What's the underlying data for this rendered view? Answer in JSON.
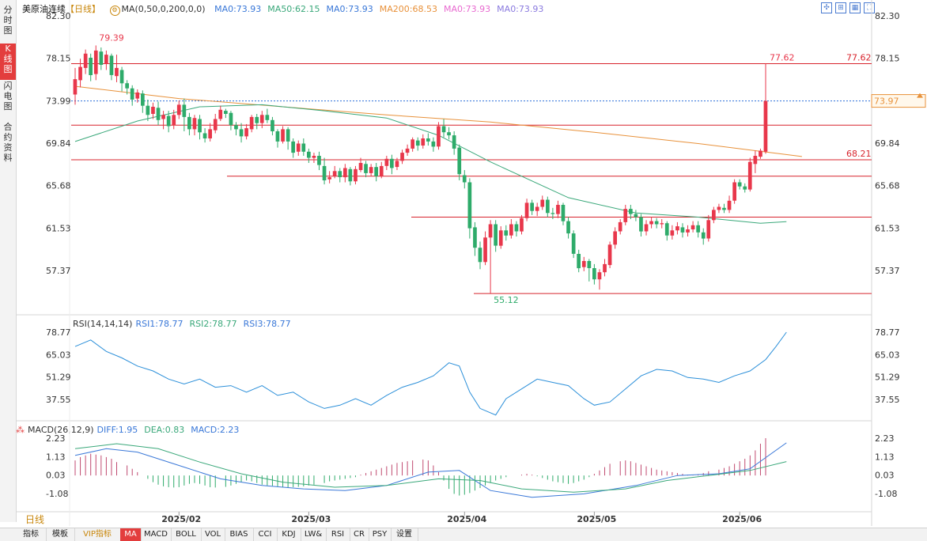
{
  "sidebar": {
    "tabs": [
      {
        "label": "分时图",
        "active": false
      },
      {
        "label": "K线图",
        "active": true
      },
      {
        "label": "闪电图",
        "active": false
      },
      {
        "label": "合约资料",
        "active": false
      }
    ]
  },
  "header": {
    "instrument": "美原油连续",
    "period": "【日线】",
    "ma_params": "MA(0,50,0,200,0,0)",
    "ma_values": [
      {
        "label": "MA0:73.93",
        "color": "#3a78d8"
      },
      {
        "label": "MA50:62.15",
        "color": "#3aa87a"
      },
      {
        "label": "MA0:73.93",
        "color": "#3a78d8"
      },
      {
        "label": "MA200:68.53",
        "color": "#e8913a"
      },
      {
        "label": "MA0:73.93",
        "color": "#e86ad0"
      },
      {
        "label": "MA0:73.93",
        "color": "#8a7adf"
      }
    ]
  },
  "rsi_header": {
    "params": "RSI(14,14,14)",
    "values": [
      {
        "label": "RSI1:78.77",
        "color": "#3a78d8"
      },
      {
        "label": "RSI2:78.77",
        "color": "#3aa87a"
      },
      {
        "label": "RSI3:78.77",
        "color": "#3a78d8"
      }
    ]
  },
  "macd_header": {
    "params": "MACD(26,12,9)",
    "values": [
      {
        "label": "DIFF:1.95",
        "color": "#3a78d8"
      },
      {
        "label": "DEA:0.83",
        "color": "#3aa87a"
      },
      {
        "label": "MACD:2.23",
        "color": "#3a78d8"
      }
    ]
  },
  "price_axis": {
    "ticks": [
      "82.30",
      "78.15",
      "73.99",
      "69.84",
      "65.68",
      "61.53",
      "57.37"
    ],
    "current": "73.97"
  },
  "rsi_axis": {
    "ticks": [
      "78.77",
      "65.03",
      "51.29",
      "37.55"
    ]
  },
  "macd_axis": {
    "ticks": [
      "2.23",
      "1.13",
      "0.03",
      "-1.08"
    ]
  },
  "date_labels": [
    "2025/02",
    "2025/03",
    "2025/04",
    "2025/05",
    "2025/06"
  ],
  "annotations": {
    "high": "79.39",
    "low": "55.12",
    "last_high": "77.62",
    "line_right": "77.62",
    "level": "68.21"
  },
  "bottom_tabs": [
    "指标",
    "模板",
    "VIP指标",
    "MA",
    "MACD",
    "BOLL",
    "VOL",
    "BIAS",
    "CCI",
    "KDJ",
    "LW&",
    "RSI",
    "CR",
    "PSY",
    "设置"
  ],
  "period_button": "日线",
  "colors": {
    "up": "#e8374b",
    "down": "#2eab6a",
    "ma50": "#3aa87a",
    "ma200": "#e8913a",
    "rsi": "#2b8fd9",
    "hline": "#d8242d",
    "dashed": "#2b6fd9"
  },
  "chart_data": {
    "type": "candlestick",
    "title": "美原油连续",
    "ylim": [
      53.5,
      82.3
    ],
    "candles": [
      [
        74.6,
        76.1,
        73.6,
        77.2
      ],
      [
        76.0,
        77.3,
        75.3,
        78.1
      ],
      [
        77.2,
        78.6,
        76.6,
        79.0
      ],
      [
        78.2,
        76.5,
        75.9,
        78.6
      ],
      [
        76.6,
        78.9,
        76.0,
        79.4
      ],
      [
        78.8,
        77.5,
        77.0,
        79.2
      ],
      [
        77.6,
        78.5,
        77.0,
        78.9
      ],
      [
        78.4,
        76.5,
        76.0,
        78.6
      ],
      [
        76.4,
        77.2,
        75.8,
        78.5
      ],
      [
        77.0,
        75.7,
        74.9,
        77.3
      ],
      [
        75.7,
        75.2,
        74.6,
        76.0
      ],
      [
        75.2,
        74.1,
        73.5,
        75.5
      ],
      [
        74.2,
        74.8,
        73.8,
        75.1
      ],
      [
        74.7,
        73.5,
        72.8,
        75.0
      ],
      [
        73.5,
        72.6,
        72.0,
        74.1
      ],
      [
        72.7,
        73.4,
        72.2,
        73.8
      ],
      [
        73.3,
        72.1,
        71.6,
        73.9
      ],
      [
        72.2,
        72.6,
        71.2,
        73.0
      ],
      [
        72.5,
        71.5,
        70.9,
        73.0
      ],
      [
        71.6,
        72.6,
        71.2,
        73.1
      ],
      [
        72.6,
        73.6,
        72.2,
        74.0
      ],
      [
        73.6,
        72.4,
        71.0,
        74.2
      ],
      [
        72.4,
        71.2,
        70.6,
        72.8
      ],
      [
        71.2,
        72.3,
        70.6,
        72.6
      ],
      [
        72.2,
        70.9,
        70.2,
        72.6
      ],
      [
        70.8,
        70.3,
        69.9,
        71.3
      ],
      [
        70.3,
        71.2,
        70.0,
        71.8
      ],
      [
        71.1,
        72.2,
        70.8,
        72.7
      ],
      [
        72.2,
        73.1,
        72.0,
        73.5
      ],
      [
        73.0,
        72.7,
        72.3,
        73.2
      ],
      [
        72.8,
        71.6,
        71.1,
        73.0
      ],
      [
        71.6,
        71.2,
        70.6,
        71.9
      ],
      [
        71.2,
        70.5,
        69.9,
        71.8
      ],
      [
        70.5,
        71.3,
        70.2,
        71.7
      ],
      [
        71.2,
        72.4,
        70.9,
        72.6
      ],
      [
        72.4,
        71.8,
        71.2,
        72.7
      ],
      [
        71.8,
        72.6,
        71.3,
        73.0
      ],
      [
        72.6,
        72.1,
        71.8,
        73.2
      ],
      [
        72.1,
        71.0,
        70.6,
        72.4
      ],
      [
        71.0,
        70.0,
        69.4,
        71.2
      ],
      [
        70.0,
        71.2,
        69.8,
        71.5
      ],
      [
        71.2,
        70.0,
        69.2,
        71.4
      ],
      [
        70.0,
        68.9,
        68.4,
        70.3
      ],
      [
        69.0,
        69.8,
        68.6,
        70.1
      ],
      [
        69.8,
        69.0,
        68.6,
        70.3
      ],
      [
        69.0,
        68.4,
        67.9,
        69.3
      ],
      [
        68.4,
        68.6,
        67.9,
        68.9
      ],
      [
        68.6,
        67.7,
        67.2,
        69.0
      ],
      [
        67.6,
        66.2,
        65.8,
        68.4
      ],
      [
        66.3,
        66.5,
        65.9,
        67.1
      ],
      [
        66.6,
        67.1,
        66.4,
        67.6
      ],
      [
        67.1,
        66.5,
        66.0,
        67.4
      ],
      [
        66.5,
        67.4,
        66.0,
        67.8
      ],
      [
        67.3,
        66.1,
        65.7,
        67.5
      ],
      [
        66.1,
        67.3,
        65.8,
        67.6
      ],
      [
        67.2,
        67.9,
        67.0,
        68.4
      ],
      [
        67.8,
        66.9,
        66.5,
        68.1
      ],
      [
        66.9,
        67.5,
        66.6,
        67.8
      ],
      [
        67.5,
        66.6,
        66.1,
        67.9
      ],
      [
        66.6,
        67.6,
        66.4,
        68.0
      ],
      [
        67.6,
        68.3,
        67.2,
        68.6
      ],
      [
        68.3,
        67.4,
        66.8,
        68.7
      ],
      [
        67.5,
        68.1,
        67.2,
        68.4
      ],
      [
        68.1,
        68.9,
        67.8,
        69.2
      ],
      [
        68.9,
        69.3,
        68.6,
        69.7
      ],
      [
        69.3,
        70.2,
        69.0,
        70.4
      ],
      [
        70.1,
        69.6,
        69.1,
        70.4
      ],
      [
        69.6,
        70.3,
        69.3,
        70.7
      ],
      [
        70.3,
        70.0,
        69.6,
        70.8
      ],
      [
        70.0,
        69.5,
        69.0,
        70.4
      ],
      [
        69.5,
        71.5,
        69.2,
        71.9
      ],
      [
        71.5,
        70.9,
        70.4,
        72.2
      ],
      [
        70.9,
        70.6,
        70.2,
        71.4
      ],
      [
        70.6,
        69.3,
        68.7,
        71.0
      ],
      [
        69.4,
        66.8,
        66.2,
        69.7
      ],
      [
        66.7,
        66.0,
        65.4,
        67.2
      ],
      [
        66.0,
        61.5,
        60.5,
        66.4
      ],
      [
        61.6,
        59.6,
        58.8,
        62.1
      ],
      [
        59.6,
        58.2,
        57.5,
        60.2
      ],
      [
        58.2,
        60.6,
        57.9,
        61.2
      ],
      [
        60.6,
        61.9,
        55.12,
        62.3
      ],
      [
        61.9,
        59.8,
        59.2,
        62.3
      ],
      [
        59.8,
        61.3,
        59.5,
        61.7
      ],
      [
        61.3,
        60.8,
        60.3,
        61.8
      ],
      [
        60.8,
        61.9,
        60.5,
        62.4
      ],
      [
        61.9,
        61.2,
        60.7,
        62.2
      ],
      [
        61.2,
        62.5,
        60.9,
        62.8
      ],
      [
        62.5,
        64.0,
        62.2,
        64.4
      ],
      [
        64.0,
        63.2,
        62.8,
        64.3
      ],
      [
        63.2,
        63.6,
        62.7,
        64.0
      ],
      [
        63.6,
        64.3,
        63.3,
        64.7
      ],
      [
        64.3,
        63.0,
        62.6,
        64.6
      ],
      [
        63.0,
        62.9,
        62.4,
        63.5
      ],
      [
        62.9,
        63.8,
        62.5,
        64.2
      ],
      [
        63.8,
        62.2,
        61.8,
        64.0
      ],
      [
        62.2,
        61.0,
        60.5,
        62.6
      ],
      [
        61.0,
        59.0,
        58.6,
        61.3
      ],
      [
        59.0,
        57.6,
        57.2,
        59.4
      ],
      [
        57.7,
        58.3,
        57.3,
        58.7
      ],
      [
        58.3,
        57.6,
        56.3,
        58.5
      ],
      [
        57.6,
        56.5,
        56.0,
        58.0
      ],
      [
        56.5,
        57.2,
        55.5,
        57.5
      ],
      [
        57.2,
        58.0,
        56.8,
        58.5
      ],
      [
        57.9,
        59.9,
        57.6,
        60.2
      ],
      [
        59.9,
        61.2,
        59.5,
        61.6
      ],
      [
        61.2,
        62.1,
        60.9,
        62.4
      ],
      [
        62.1,
        63.4,
        61.8,
        63.8
      ],
      [
        63.4,
        62.9,
        62.4,
        63.8
      ],
      [
        62.9,
        62.6,
        62.2,
        63.3
      ],
      [
        62.6,
        61.2,
        60.7,
        62.9
      ],
      [
        61.2,
        61.9,
        60.8,
        62.3
      ],
      [
        61.9,
        62.2,
        61.5,
        62.6
      ],
      [
        62.2,
        61.9,
        61.5,
        62.5
      ],
      [
        61.9,
        62.0,
        61.5,
        62.4
      ],
      [
        62.0,
        60.8,
        60.3,
        62.2
      ],
      [
        60.8,
        61.3,
        60.4,
        61.8
      ],
      [
        61.3,
        61.7,
        60.9,
        62.1
      ],
      [
        61.6,
        61.1,
        60.6,
        62.0
      ],
      [
        61.1,
        61.4,
        60.7,
        61.8
      ],
      [
        61.4,
        61.8,
        61.1,
        62.2
      ],
      [
        61.8,
        61.1,
        60.6,
        62.2
      ],
      [
        61.1,
        60.5,
        59.9,
        61.5
      ],
      [
        60.5,
        62.3,
        60.2,
        62.8
      ],
      [
        62.3,
        63.3,
        62.0,
        63.6
      ],
      [
        63.3,
        63.6,
        63.0,
        63.9
      ],
      [
        63.5,
        63.3,
        63.0,
        63.9
      ],
      [
        63.3,
        64.2,
        63.0,
        64.7
      ],
      [
        64.2,
        66.0,
        63.9,
        66.3
      ],
      [
        66.0,
        65.6,
        65.3,
        66.3
      ],
      [
        65.6,
        65.3,
        65.0,
        65.9
      ],
      [
        65.3,
        68.0,
        65.1,
        68.4
      ],
      [
        67.8,
        68.6,
        66.9,
        69.1
      ],
      [
        68.5,
        69.1,
        68.3,
        69.3
      ],
      [
        69.0,
        73.97,
        68.8,
        77.62
      ]
    ]
  }
}
